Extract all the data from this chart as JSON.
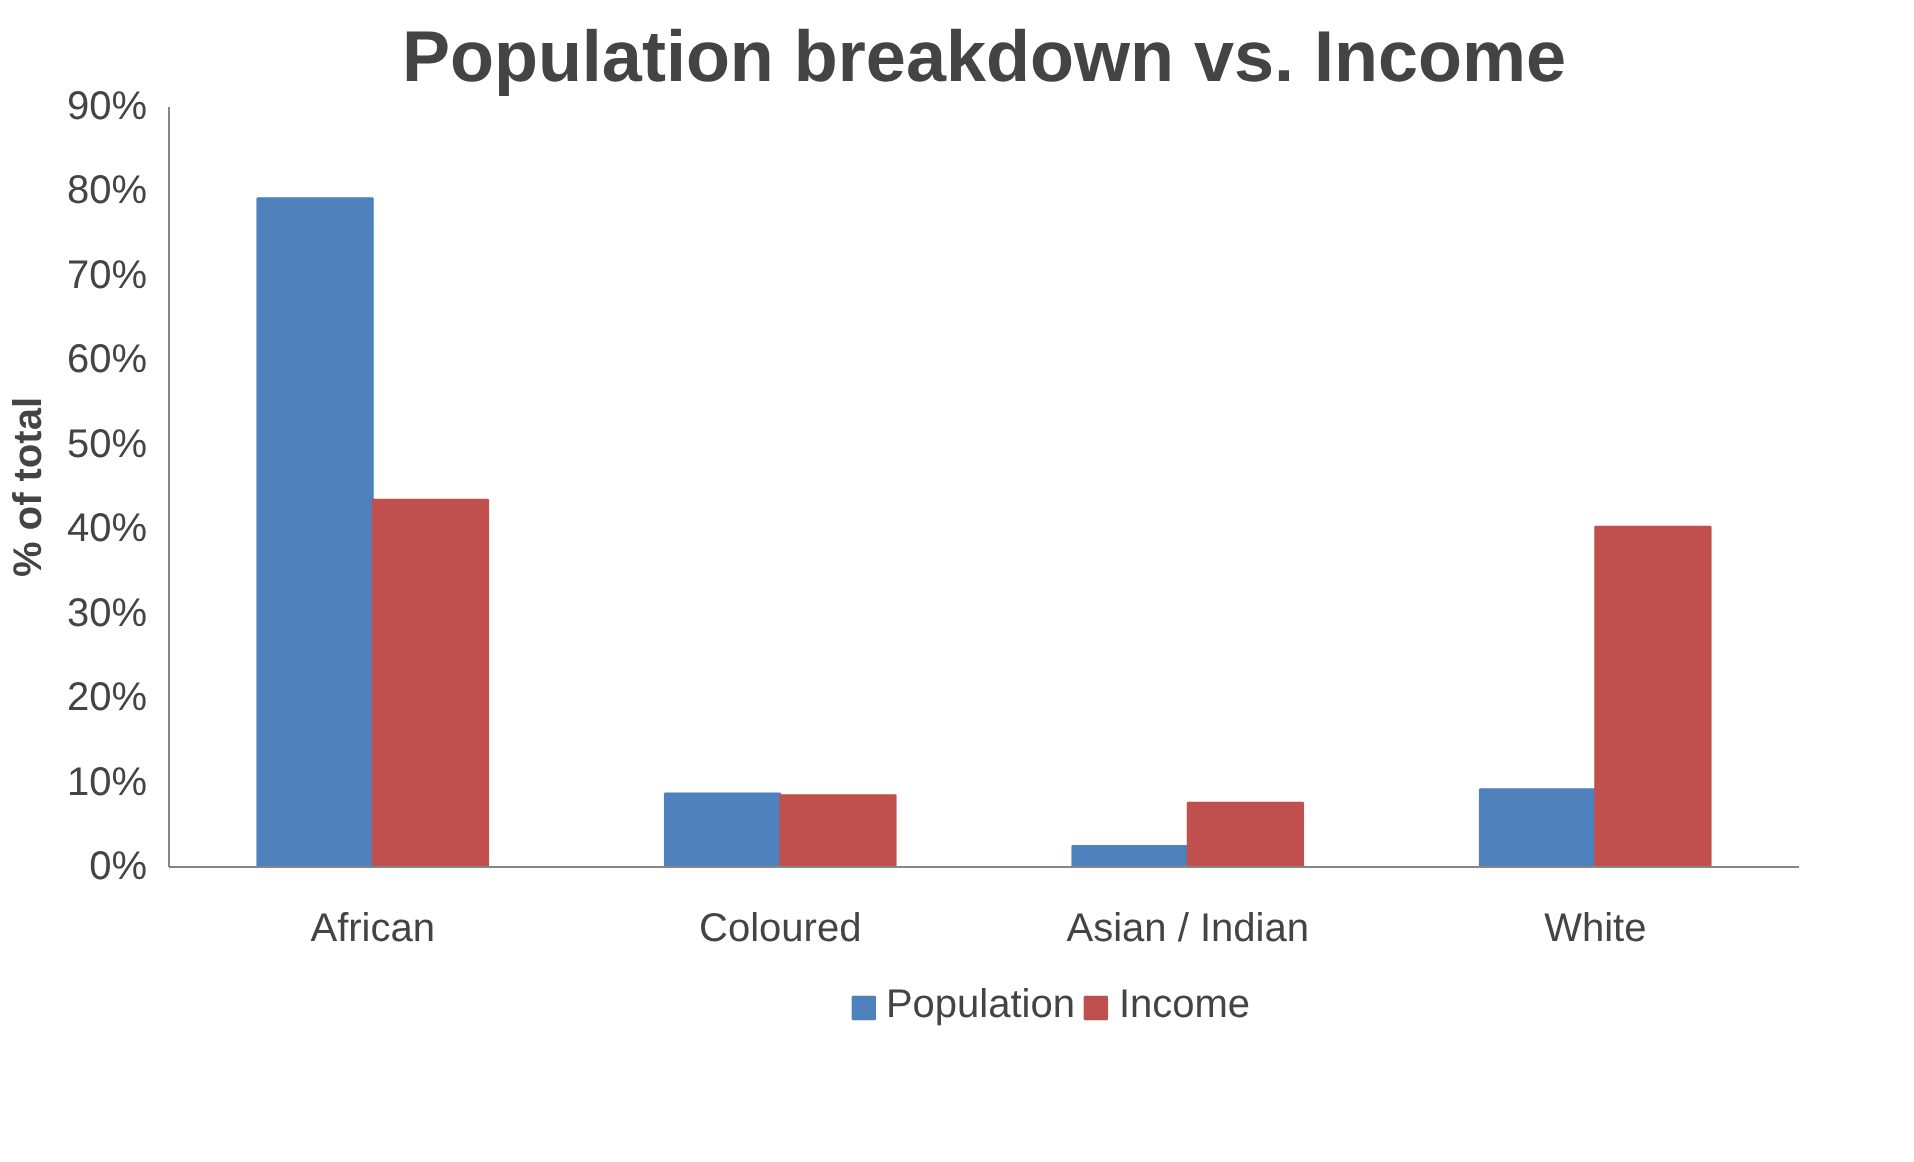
{
  "chart_data": {
    "type": "bar",
    "title": "Population breakdown vs. Income",
    "ylabel": "% of total",
    "categories": [
      "African",
      "Coloured",
      "Asian / Indian",
      "White"
    ],
    "series": [
      {
        "name": "Population",
        "color": "#4f81bd",
        "values": [
          79.2,
          8.7,
          2.5,
          9.2
        ]
      },
      {
        "name": "Income",
        "color": "#c0504d",
        "values": [
          43.5,
          8.5,
          7.6,
          40.3
        ]
      }
    ],
    "ylim": [
      0,
      90
    ],
    "yticks": [
      {
        "value": 0,
        "label": "0%"
      },
      {
        "value": 10,
        "label": "10%"
      },
      {
        "value": 20,
        "label": "20%"
      },
      {
        "value": 30,
        "label": "30%"
      },
      {
        "value": 40,
        "label": "40%"
      },
      {
        "value": 50,
        "label": "50%"
      },
      {
        "value": 60,
        "label": "60%"
      },
      {
        "value": 70,
        "label": "70%"
      },
      {
        "value": 80,
        "label": "80%"
      },
      {
        "value": 90,
        "label": "90%"
      }
    ],
    "grid": false,
    "legend": "bottom"
  }
}
